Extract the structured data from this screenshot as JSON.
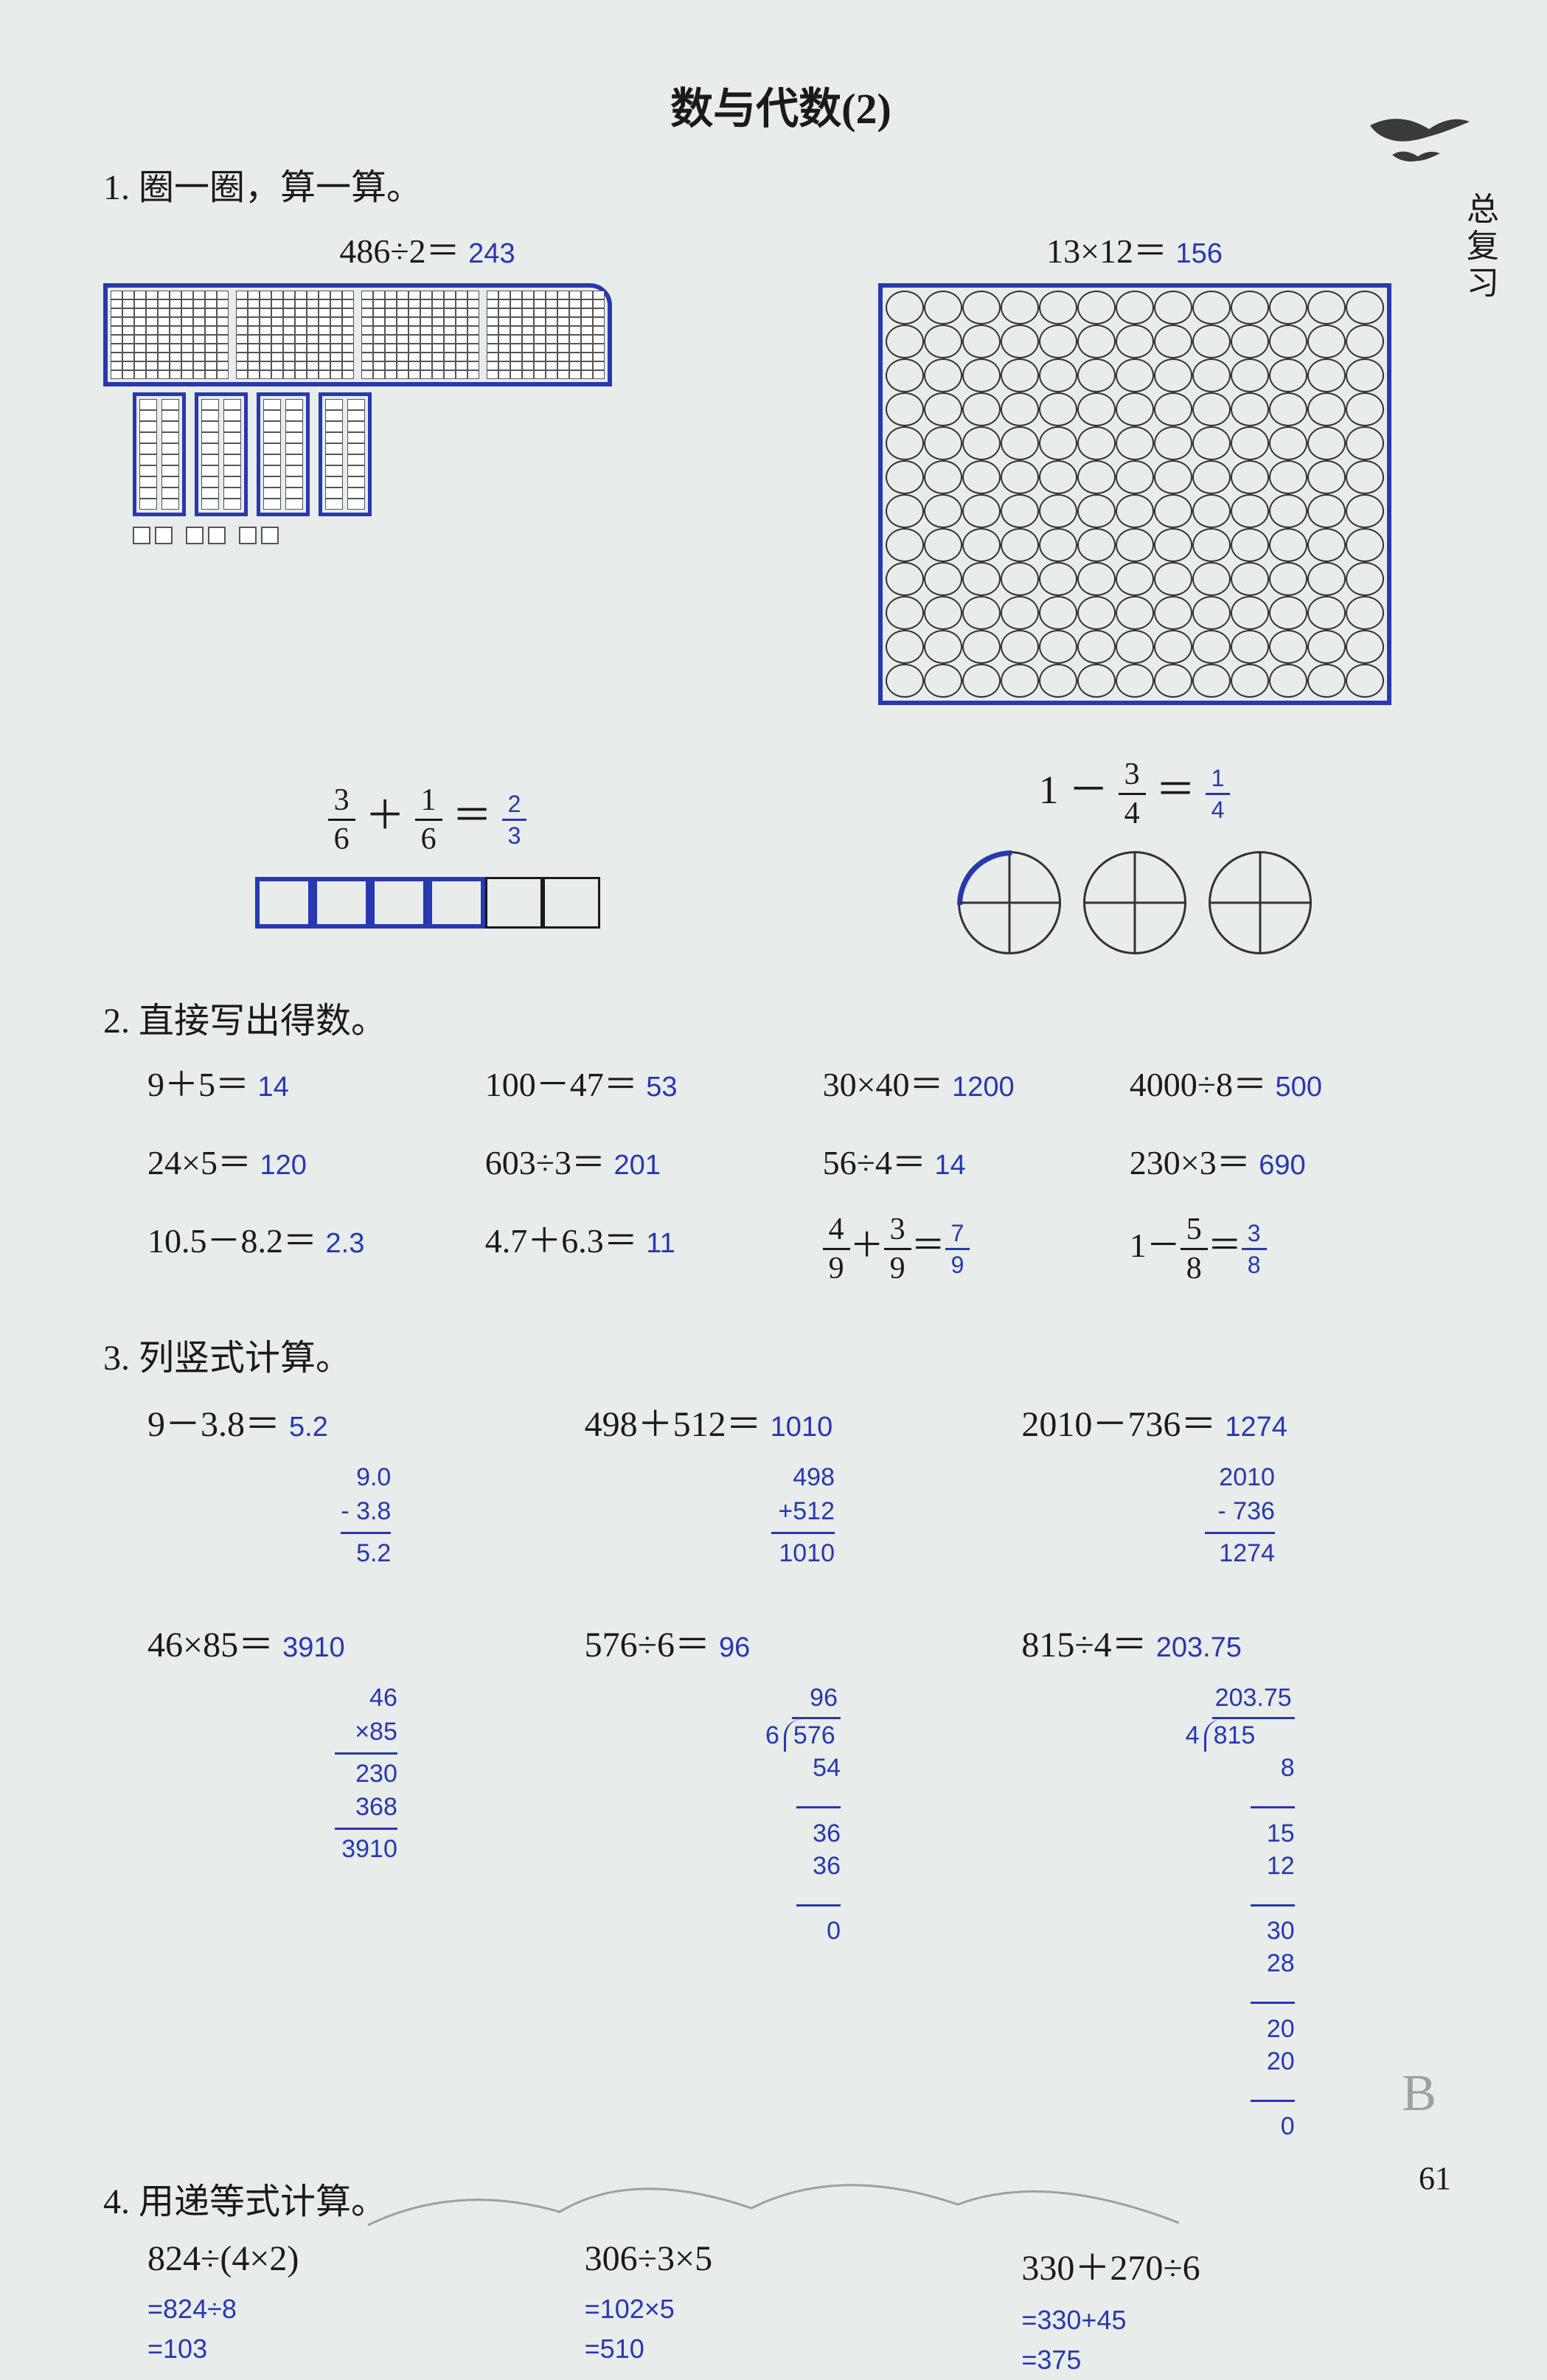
{
  "side_label": "总复习",
  "title": "数与代数(2)",
  "page_number": "61",
  "b_mark": "B",
  "q1": {
    "head": "1. 圈一圈，算一算。",
    "p1": {
      "expr": "486÷2＝",
      "ans": "243",
      "blocks": {
        "hundreds": 4,
        "tens_pairs": 4,
        "ones_pairs": 3
      }
    },
    "p2": {
      "expr": "13×12＝",
      "ans": "156",
      "grid": {
        "rows": 12,
        "cols": 13
      }
    },
    "p3": {
      "lhs_n": "3",
      "lhs_d": "6",
      "op": "＋",
      "rhs_n": "1",
      "rhs_d": "6",
      "ans_n": "2",
      "ans_d": "3",
      "strip_cells": 6,
      "strip_filled": 4
    },
    "p4": {
      "one": "1",
      "op": "－",
      "rhs_n": "3",
      "rhs_d": "4",
      "ans_n": "1",
      "ans_d": "4",
      "circles": 3
    }
  },
  "q2": {
    "head": "2. 直接写出得数。",
    "items": [
      {
        "expr": "9＋5＝",
        "ans": "14"
      },
      {
        "expr": "100－47＝",
        "ans": "53"
      },
      {
        "expr": "30×40＝",
        "ans": "1200"
      },
      {
        "expr": "4000÷8＝",
        "ans": "500"
      },
      {
        "expr": "24×5＝",
        "ans": "120"
      },
      {
        "expr": "603÷3＝",
        "ans": "201"
      },
      {
        "expr": "56÷4＝",
        "ans": "14"
      },
      {
        "expr": "230×3＝",
        "ans": "690"
      },
      {
        "expr": "10.5－8.2＝",
        "ans": "2.3"
      },
      {
        "expr": "4.7＋6.3＝",
        "ans": "11"
      },
      {
        "type": "frac",
        "l_n": "4",
        "l_d": "9",
        "op": "＋",
        "r_n": "3",
        "r_d": "9",
        "a_n": "7",
        "a_d": "9"
      },
      {
        "type": "frac1",
        "one": "1",
        "op": "－",
        "r_n": "5",
        "r_d": "8",
        "a_n": "3",
        "a_d": "8"
      }
    ]
  },
  "q3": {
    "head": "3. 列竖式计算。",
    "items": [
      {
        "expr": "9－3.8＝",
        "ans": "5.2",
        "work": [
          "  9.0",
          "- 3.8",
          "LINE",
          "  5.2"
        ]
      },
      {
        "expr": "498＋512＝",
        "ans": "1010",
        "work": [
          "  498",
          " +512",
          "LINE",
          " 1010"
        ]
      },
      {
        "expr": "2010－736＝",
        "ans": "1274",
        "work": [
          "  2010",
          " - 736",
          "LINE",
          "  1274"
        ]
      },
      {
        "expr": "46×85＝",
        "ans": "3910",
        "work": [
          "   46",
          "  ×85",
          "LINE",
          "  230",
          "  368",
          "LINE",
          " 3910"
        ]
      },
      {
        "expr": "576÷6＝",
        "ans": "96",
        "type": "ldiv",
        "divisor": "6",
        "dividend": "576",
        "quotient": "96",
        "steps": [
          "54",
          "LINE",
          " 36",
          " 36",
          "LINE",
          "  0"
        ]
      },
      {
        "expr": "815÷4＝",
        "ans": "203.75",
        "type": "ldiv",
        "divisor": "4",
        "dividend": "815",
        "quotient": "203.75",
        "steps": [
          "8",
          "LINE",
          " 15",
          " 12",
          "LINE",
          "  30",
          "  28",
          "LINE",
          "   20",
          "   20",
          "LINE",
          "    0"
        ]
      }
    ]
  },
  "q4": {
    "head": "4. 用递等式计算。",
    "items": [
      {
        "expr": "824÷(4×2)",
        "steps": [
          "=824÷8",
          "=103"
        ]
      },
      {
        "expr": "306÷3×5",
        "steps": [
          "=102×5",
          "=510"
        ]
      },
      {
        "expr": "330＋270÷6",
        "steps": [
          "=330+45",
          "=375"
        ]
      }
    ]
  }
}
